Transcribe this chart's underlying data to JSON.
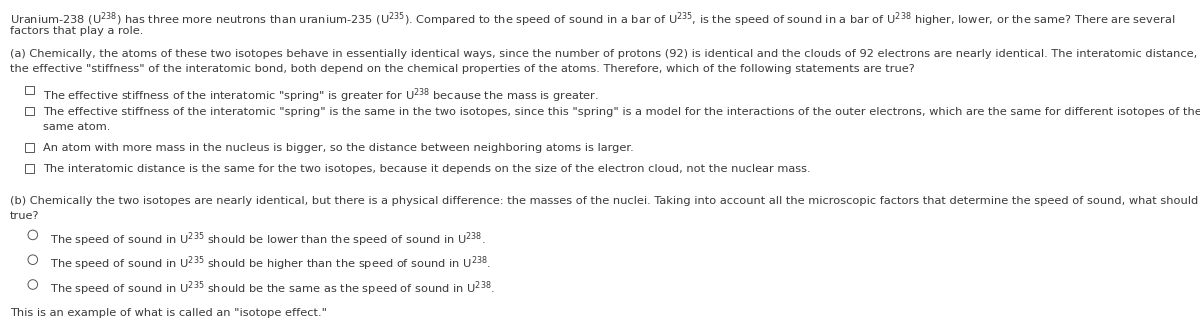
{
  "bg_color": "#ffffff",
  "text_color": "#3a3a3a",
  "font_size": 8.2,
  "fig_width": 12.0,
  "fig_height": 3.28,
  "dpi": 100,
  "intro_line1": "Uranium-238 (U$^{238}$) has three more neutrons than uranium-235 (U$^{235}$). Compared to the speed of sound in a bar of U$^{235}$, is the speed of sound in a bar of U$^{238}$ higher, lower, or the same? There are several",
  "intro_line2": "factors that play a role.",
  "part_a_line1": "(a) Chemically, the atoms of these two isotopes behave in essentially identical ways, since the number of protons (92) is identical and the clouds of 92 electrons are nearly identical. The interatomic distance, and",
  "part_a_line2": "the effective \"stiffness\" of the interatomic bond, both depend on the chemical properties of the atoms. Therefore, which of the following statements are true?",
  "checkbox_options": [
    [
      "The effective stiffness of the interatomic \"spring\" is greater for U$^{238}$ because the mass is greater."
    ],
    [
      "The effective stiffness of the interatomic \"spring\" is the same in the two isotopes, since this \"spring\" is a model for the interactions of the outer electrons, which are the same for different isotopes of the",
      "same atom."
    ],
    [
      "An atom with more mass in the nucleus is bigger, so the distance between neighboring atoms is larger."
    ],
    [
      "The interatomic distance is the same for the two isotopes, because it depends on the size of the electron cloud, not the nuclear mass."
    ]
  ],
  "part_b_line1": "(b) Chemically the two isotopes are nearly identical, but there is a physical difference: the masses of the nuclei. Taking into account all the microscopic factors that determine the speed of sound, what should be",
  "part_b_line2": "true?",
  "radio_options": [
    "The speed of sound in U$^{235}$ should be lower than the speed of sound in U$^{238}$.",
    "The speed of sound in U$^{235}$ should be higher than the speed of sound in U$^{238}$.",
    "The speed of sound in U$^{235}$ should be the same as the speed of sound in U$^{238}$."
  ],
  "footer": "This is an example of what is called an \"isotope effect.\""
}
